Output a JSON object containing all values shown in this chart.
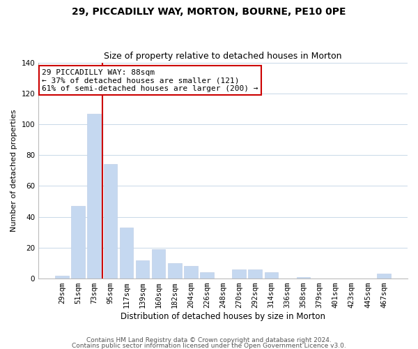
{
  "title": "29, PICCADILLY WAY, MORTON, BOURNE, PE10 0PE",
  "subtitle": "Size of property relative to detached houses in Morton",
  "xlabel": "Distribution of detached houses by size in Morton",
  "ylabel": "Number of detached properties",
  "bar_labels": [
    "29sqm",
    "51sqm",
    "73sqm",
    "95sqm",
    "117sqm",
    "139sqm",
    "160sqm",
    "182sqm",
    "204sqm",
    "226sqm",
    "248sqm",
    "270sqm",
    "292sqm",
    "314sqm",
    "336sqm",
    "358sqm",
    "379sqm",
    "401sqm",
    "423sqm",
    "445sqm",
    "467sqm"
  ],
  "bar_values": [
    2,
    47,
    107,
    74,
    33,
    12,
    19,
    10,
    8,
    4,
    0,
    6,
    6,
    4,
    0,
    1,
    0,
    0,
    0,
    0,
    3
  ],
  "bar_color": "#c5d8f0",
  "bar_edge_color": "#c0d0e8",
  "vline_color": "#cc0000",
  "vline_pos": 2.5,
  "ylim": [
    0,
    140
  ],
  "yticks": [
    0,
    20,
    40,
    60,
    80,
    100,
    120,
    140
  ],
  "annotation_line1": "29 PICCADILLY WAY: 88sqm",
  "annotation_line2": "← 37% of detached houses are smaller (121)",
  "annotation_line3": "61% of semi-detached houses are larger (200) →",
  "footer_line1": "Contains HM Land Registry data © Crown copyright and database right 2024.",
  "footer_line2": "Contains public sector information licensed under the Open Government Licence v3.0.",
  "bg_color": "#ffffff",
  "grid_color": "#c8d8e8",
  "title_fontsize": 10,
  "subtitle_fontsize": 9,
  "xlabel_fontsize": 8.5,
  "ylabel_fontsize": 8,
  "tick_fontsize": 7.5,
  "annotation_fontsize": 8,
  "footer_fontsize": 6.5
}
